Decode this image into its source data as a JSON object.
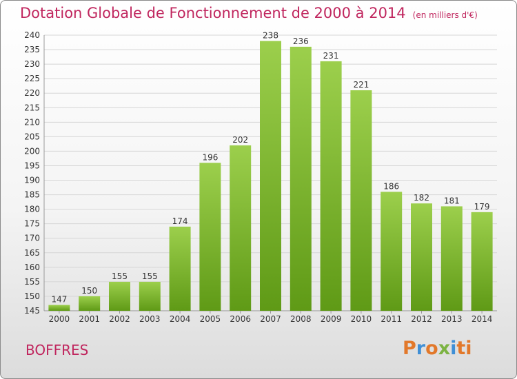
{
  "chart_data": {
    "type": "bar",
    "title": "Dotation Globale de Fonctionnement de 2000 à 2014",
    "unit": "(en milliers d'€)",
    "categories": [
      "2000",
      "2001",
      "2002",
      "2003",
      "2004",
      "2005",
      "2006",
      "2007",
      "2008",
      "2009",
      "2010",
      "2011",
      "2012",
      "2013",
      "2014"
    ],
    "values": [
      147,
      150,
      155,
      155,
      174,
      196,
      202,
      238,
      236,
      231,
      221,
      186,
      182,
      181,
      179
    ],
    "ylim": [
      145,
      240
    ],
    "yticks": [
      145,
      150,
      155,
      160,
      165,
      170,
      175,
      180,
      185,
      190,
      195,
      200,
      205,
      210,
      215,
      220,
      225,
      230,
      235,
      240
    ],
    "grid": true,
    "colors": {
      "bar_top": "#9ccf4c",
      "bar_bottom": "#5f9a16",
      "grid": "#d6d6d6",
      "title": "#c0265e"
    }
  },
  "footer": {
    "city": "BOFFRES"
  },
  "logo": {
    "letters": [
      "P",
      "r",
      "o",
      "x",
      "i",
      "t",
      "i"
    ]
  }
}
